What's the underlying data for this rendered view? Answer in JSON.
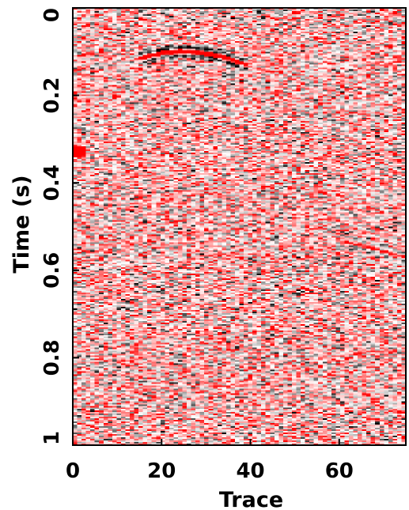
{
  "chart_data": {
    "type": "heatmap",
    "title": "",
    "xlabel": "Trace",
    "ylabel": "Time (s)",
    "xlim": [
      0,
      75
    ],
    "ylim": [
      0,
      1.0
    ],
    "y_inverted": true,
    "x_ticks": [
      {
        "value": 0,
        "label": "0"
      },
      {
        "value": 20,
        "label": "20"
      },
      {
        "value": 40,
        "label": "40"
      },
      {
        "value": 60,
        "label": "60"
      }
    ],
    "y_ticks": [
      {
        "value": 0,
        "label": "0"
      },
      {
        "value": 0.2,
        "label": "0.2"
      },
      {
        "value": 0.4,
        "label": "0.4"
      },
      {
        "value": 0.6,
        "label": "0.6"
      },
      {
        "value": 0.8,
        "label": "0.8"
      },
      {
        "value": 1.0,
        "label": "1"
      }
    ],
    "colormap": {
      "negative": "#ff0000",
      "zero": "#ffffff",
      "positive": "#000000"
    },
    "background_noise": "random seismic-style noise across all traces",
    "events": [
      {
        "name": "diffraction-hyperbola",
        "apex_trace": 25,
        "apex_time": 0.1,
        "trace_range": [
          15,
          39
        ],
        "velocity_factor": 0.006
      },
      {
        "name": "weak-dipping-event",
        "points": [
          [
            60,
            0.53
          ],
          [
            75,
            0.57
          ]
        ]
      },
      {
        "name": "edge-spot",
        "trace": 1,
        "time": 0.33
      }
    ],
    "grid": false,
    "legend": "none"
  }
}
